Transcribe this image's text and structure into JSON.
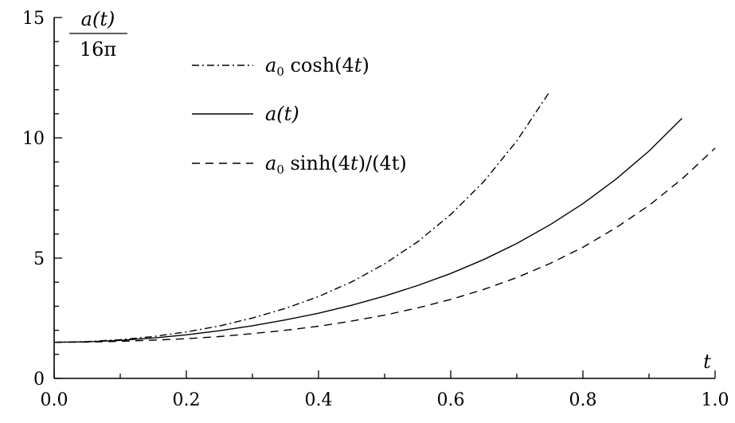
{
  "chart_data": {
    "type": "line",
    "title": "",
    "xlabel": "t",
    "ylabel": {
      "numerator": "a(t)",
      "denominator": "16π"
    },
    "xlim": [
      0.0,
      1.0
    ],
    "ylim": [
      0,
      15
    ],
    "grid": false,
    "legend_position": "top-left",
    "x_ticks": [
      "0.0",
      "0.2",
      "0.4",
      "0.6",
      "0.8",
      "1.0"
    ],
    "y_ticks": [
      "0",
      "5",
      "10",
      "15"
    ],
    "series": [
      {
        "name": "a0 cosh(4t)",
        "legend": {
          "pre": "a",
          "sub": "0",
          "post": " cosh(4",
          "var": "t",
          "end": ")"
        },
        "style": "dashdot",
        "x": [
          0.0,
          0.05,
          0.1,
          0.15,
          0.2,
          0.25,
          0.3,
          0.35,
          0.4,
          0.45,
          0.5,
          0.55,
          0.6,
          0.65,
          0.7,
          0.75
        ],
        "y": [
          1.5,
          1.53,
          1.61,
          1.74,
          1.93,
          2.18,
          2.51,
          2.91,
          3.4,
          4.01,
          4.76,
          5.68,
          6.81,
          8.18,
          9.87,
          11.93
        ]
      },
      {
        "name": "a(t)",
        "legend": {
          "pre": "",
          "sub": "",
          "post": "",
          "var": "a(t)",
          "end": ""
        },
        "style": "solid",
        "x": [
          0.0,
          0.05,
          0.1,
          0.15,
          0.2,
          0.25,
          0.3,
          0.35,
          0.4,
          0.45,
          0.5,
          0.55,
          0.6,
          0.65,
          0.7,
          0.75,
          0.8,
          0.85,
          0.9,
          0.95
        ],
        "y": [
          1.5,
          1.52,
          1.58,
          1.68,
          1.81,
          1.98,
          2.19,
          2.43,
          2.71,
          3.04,
          3.42,
          3.86,
          4.36,
          4.94,
          5.61,
          6.38,
          7.26,
          8.28,
          9.45,
          10.81
        ]
      },
      {
        "name": "a0 sinh(4t)/(4t)",
        "legend": {
          "pre": "a",
          "sub": "0",
          "post": " sinh(4",
          "var": "t",
          "end": ")/(4t)"
        },
        "style": "dashed",
        "x": [
          0.0,
          0.05,
          0.1,
          0.15,
          0.2,
          0.25,
          0.3,
          0.35,
          0.4,
          0.45,
          0.5,
          0.55,
          0.6,
          0.65,
          0.7,
          0.75,
          0.8,
          0.85,
          0.9,
          0.95,
          1.0
        ],
        "y": [
          1.5,
          1.51,
          1.54,
          1.59,
          1.65,
          1.74,
          1.86,
          2.0,
          2.17,
          2.38,
          2.63,
          2.93,
          3.28,
          3.7,
          4.19,
          4.77,
          5.45,
          6.26,
          7.19,
          8.29,
          9.57
        ]
      }
    ]
  }
}
